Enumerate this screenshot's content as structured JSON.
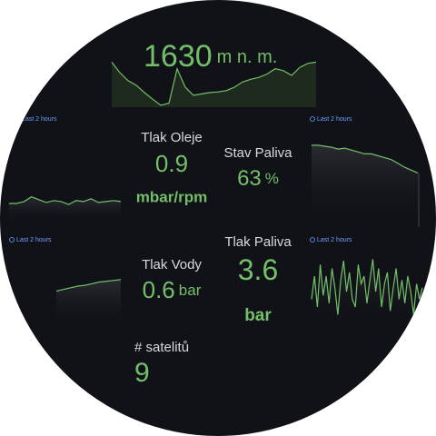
{
  "altitude": {
    "value": 1630,
    "unit": "m n. m.",
    "trend": {
      "values": [
        68,
        52,
        40,
        33,
        22,
        12,
        3,
        6,
        58,
        30,
        18,
        20,
        22,
        23,
        25,
        30,
        38,
        42,
        45,
        50,
        58,
        55,
        48,
        60,
        66,
        68
      ],
      "ylim": [
        0,
        100
      ]
    }
  },
  "sparklines": [
    {
      "time_range": "Last 2 hours",
      "values": [
        20,
        20,
        22,
        27,
        24,
        21,
        23,
        22,
        19,
        23,
        22,
        25,
        21,
        22,
        23,
        22
      ],
      "ylim": [
        0,
        100
      ]
    },
    {
      "time_range": "Last 2 hours",
      "values": [
        81,
        81,
        80,
        79,
        77,
        78,
        76,
        74,
        72,
        72,
        70,
        68,
        66,
        62,
        58,
        55,
        52
      ],
      "ylim": [
        0,
        100
      ]
    },
    {
      "time_range": "Last 2 hours",
      "values": [
        44,
        46,
        48,
        50,
        51,
        53,
        55,
        56,
        57,
        58
      ],
      "ylim": [
        0,
        100
      ]
    },
    {
      "time_range": "Last 2 hours",
      "values": [
        30,
        60,
        20,
        75,
        35,
        60,
        25,
        70,
        45,
        10,
        55,
        80,
        40,
        65,
        30,
        20,
        75,
        50,
        60,
        25,
        55,
        82,
        40,
        70,
        20,
        50,
        65,
        15,
        45,
        70,
        30,
        55,
        25,
        60,
        40,
        10,
        50,
        30,
        45
      ],
      "ylim": [
        0,
        100
      ]
    }
  ],
  "stats": [
    {
      "title": "Tlak Oleje",
      "value": 0.9,
      "unit": "mbar/rpm"
    },
    {
      "title": "Stav Paliva",
      "value": 63,
      "unit": "%"
    },
    {
      "title": "Tlak Vody",
      "value": 0.6,
      "unit": "bar"
    },
    {
      "title": "Tlak Paliva",
      "value": 3.6,
      "unit": "bar"
    },
    {
      "title": "# satelitů",
      "value": 9
    }
  ]
}
